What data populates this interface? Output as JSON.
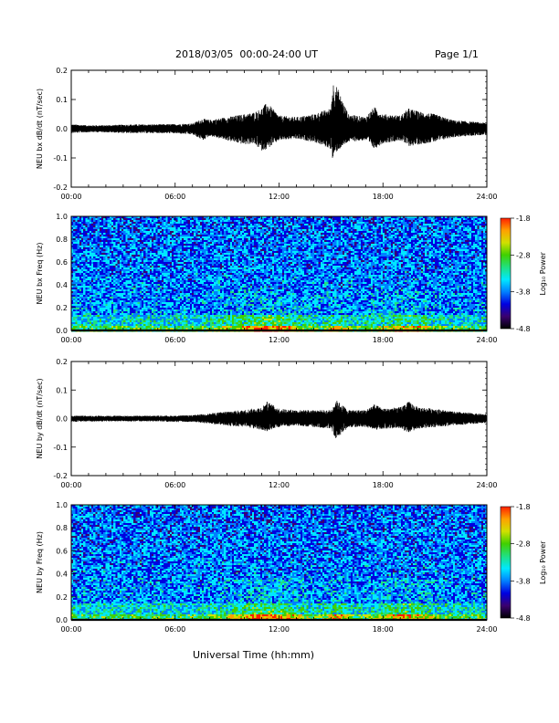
{
  "header": {
    "title": "2018/03/05  00:00-24:00 UT",
    "page": "Page 1/1"
  },
  "x_axis_title": "Universal Time (hh:mm)",
  "colors": {
    "trace": "#000000",
    "colorbar": [
      "#000000",
      "#3a0070",
      "#0000e0",
      "#0080ff",
      "#00e8ff",
      "#20e080",
      "#40d000",
      "#d0e000",
      "#ffa000",
      "#ff2000"
    ]
  },
  "chart_data": [
    {
      "type": "line",
      "xlabel": "",
      "ylabel": "NEU bx dB/dt (nT/sec)",
      "x_ticks": [
        "00:00",
        "06:00",
        "12:00",
        "18:00",
        "24:00"
      ],
      "xlim": [
        0,
        24
      ],
      "ylim": [
        -0.2,
        0.2
      ],
      "y_ticks": [
        "0.2",
        "0.1",
        "0.0",
        "-0.1",
        "-0.2"
      ],
      "series": [
        {
          "x": [
            0,
            1,
            2,
            3,
            4,
            5,
            6,
            7,
            7.6,
            8,
            9,
            10,
            10.5,
            11,
            11.3,
            12,
            13,
            14,
            15,
            15.1,
            15.3,
            16,
            17,
            17.5,
            18,
            19,
            19.5,
            20,
            21,
            22,
            23,
            24
          ],
          "upper": [
            0.015,
            0.012,
            0.012,
            0.014,
            0.015,
            0.015,
            0.016,
            0.018,
            0.035,
            0.03,
            0.04,
            0.05,
            0.055,
            0.07,
            0.09,
            0.045,
            0.04,
            0.05,
            0.07,
            0.16,
            0.15,
            0.05,
            0.04,
            0.075,
            0.05,
            0.045,
            0.07,
            0.06,
            0.05,
            0.03,
            0.025,
            0.02
          ],
          "lower": [
            -0.015,
            -0.012,
            -0.012,
            -0.015,
            -0.015,
            -0.015,
            -0.016,
            -0.02,
            -0.04,
            -0.025,
            -0.04,
            -0.055,
            -0.05,
            -0.075,
            -0.07,
            -0.04,
            -0.035,
            -0.045,
            -0.07,
            -0.11,
            -0.08,
            -0.045,
            -0.04,
            -0.07,
            -0.05,
            -0.04,
            -0.06,
            -0.055,
            -0.045,
            -0.03,
            -0.025,
            -0.02
          ]
        }
      ]
    },
    {
      "type": "heatmap",
      "xlabel": "",
      "ylabel": "NEU bx Freq (Hz)",
      "x_ticks": [
        "00:00",
        "06:00",
        "12:00",
        "18:00",
        "24:00"
      ],
      "xlim": [
        0,
        24
      ],
      "ylim": [
        0.0,
        1.0
      ],
      "y_ticks": [
        "1.0",
        "0.8",
        "0.6",
        "0.4",
        "0.2",
        "0.0"
      ],
      "colorbar": {
        "label": "Log₁₀ Power",
        "ticks": [
          "-1.8",
          "-2.8",
          "-3.8",
          "-4.8"
        ],
        "range": [
          -4.8,
          -1.8
        ]
      }
    },
    {
      "type": "line",
      "xlabel": "",
      "ylabel": "NEU by dB/dt (nT/sec)",
      "x_ticks": [
        "00:00",
        "06:00",
        "12:00",
        "18:00",
        "24:00"
      ],
      "xlim": [
        0,
        24
      ],
      "ylim": [
        -0.2,
        0.2
      ],
      "y_ticks": [
        "0.2",
        "0.1",
        "0.0",
        "-0.1",
        "-0.2"
      ],
      "series": [
        {
          "x": [
            0,
            1,
            2,
            3,
            4,
            5,
            6,
            7,
            8,
            9,
            10,
            11,
            11.3,
            12,
            13,
            14,
            15,
            15.3,
            16,
            17,
            17.5,
            18,
            19,
            19.5,
            20,
            21,
            22,
            23,
            24
          ],
          "upper": [
            0.01,
            0.01,
            0.01,
            0.01,
            0.01,
            0.01,
            0.01,
            0.012,
            0.018,
            0.025,
            0.03,
            0.04,
            0.06,
            0.035,
            0.03,
            0.03,
            0.03,
            0.065,
            0.03,
            0.03,
            0.05,
            0.035,
            0.04,
            0.06,
            0.04,
            0.035,
            0.025,
            0.02,
            0.015
          ],
          "lower": [
            -0.012,
            -0.01,
            -0.01,
            -0.01,
            -0.01,
            -0.01,
            -0.012,
            -0.012,
            -0.018,
            -0.025,
            -0.03,
            -0.04,
            -0.045,
            -0.03,
            -0.025,
            -0.03,
            -0.035,
            -0.075,
            -0.03,
            -0.03,
            -0.04,
            -0.035,
            -0.035,
            -0.05,
            -0.035,
            -0.03,
            -0.025,
            -0.02,
            -0.015
          ]
        }
      ]
    },
    {
      "type": "heatmap",
      "xlabel": "Universal Time (hh:mm)",
      "ylabel": "NEU by Freq (Hz)",
      "x_ticks": [
        "00:00",
        "06:00",
        "12:00",
        "18:00",
        "24:00"
      ],
      "xlim": [
        0,
        24
      ],
      "ylim": [
        0.0,
        1.0
      ],
      "y_ticks": [
        "1.0",
        "0.8",
        "0.6",
        "0.4",
        "0.2",
        "0.0"
      ],
      "colorbar": {
        "label": "Log₁₀ Power",
        "ticks": [
          "-1.8",
          "-2.8",
          "-3.8",
          "-4.8"
        ],
        "range": [
          -4.8,
          -1.8
        ]
      }
    }
  ]
}
